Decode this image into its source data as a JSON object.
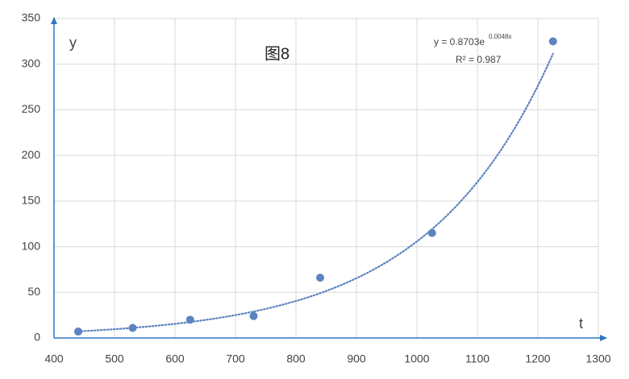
{
  "chart_data": {
    "type": "scatter",
    "title": "图8",
    "x_label": "t",
    "y_label": "y",
    "x": [
      440,
      530,
      625,
      730,
      840,
      1025,
      1225
    ],
    "values": [
      7,
      11,
      20,
      24,
      66,
      115,
      325
    ],
    "color": "#5b84c0",
    "xlim": [
      400,
      1300
    ],
    "xticks": [
      400,
      500,
      600,
      700,
      800,
      900,
      1000,
      1100,
      1200,
      1300
    ],
    "ylim": [
      0,
      350
    ],
    "yticks": [
      0,
      50,
      100,
      150,
      200,
      250,
      300,
      350
    ],
    "grid": true,
    "trendline": {
      "a": 0.8703,
      "b": 0.0048,
      "color": "#5b84c0",
      "label": "y = 0.8703e",
      "label_exponent": "0.0048x",
      "r2_label": "R² = 0.987"
    }
  }
}
